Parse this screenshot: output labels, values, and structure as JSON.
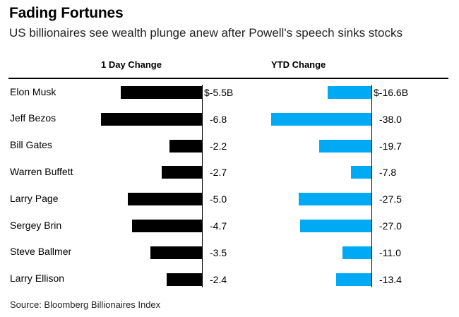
{
  "title": "Fading Fortunes",
  "subtitle": "US billionaires see wealth plunge anew after Powell's speech sinks stocks",
  "source": "Source: Bloomberg Billionaires Index",
  "colors": {
    "day_bar": "#000000",
    "ytd_bar": "#00a9f4"
  },
  "chart_data": {
    "type": "bar",
    "orientation": "horizontal",
    "categories": [
      "Elon Musk",
      "Jeff Bezos",
      "Bill Gates",
      "Warren Buffett",
      "Larry Page",
      "Sergey Brin",
      "Steve Ballmer",
      "Larry Ellison"
    ],
    "series": [
      {
        "name": "1 Day Change",
        "values": [
          -5.5,
          -6.8,
          -2.2,
          -2.7,
          -5.0,
          -4.7,
          -3.5,
          -2.4
        ],
        "labels": [
          "$-5.5B",
          "-6.8",
          "-2.2",
          "-2.7",
          "-5.0",
          "-4.7",
          "-3.5",
          "-2.4"
        ]
      },
      {
        "name": "YTD Change",
        "values": [
          -16.6,
          -38.0,
          -19.7,
          -7.8,
          -27.5,
          -27.0,
          -11.0,
          -13.4
        ],
        "labels": [
          "$-16.6B",
          "-38.0",
          "-19.7",
          "-7.8",
          "-27.5",
          "-27.0",
          "-11.0",
          "-13.4"
        ]
      }
    ],
    "unit": "$B",
    "grid": false,
    "legend": "column headers"
  }
}
